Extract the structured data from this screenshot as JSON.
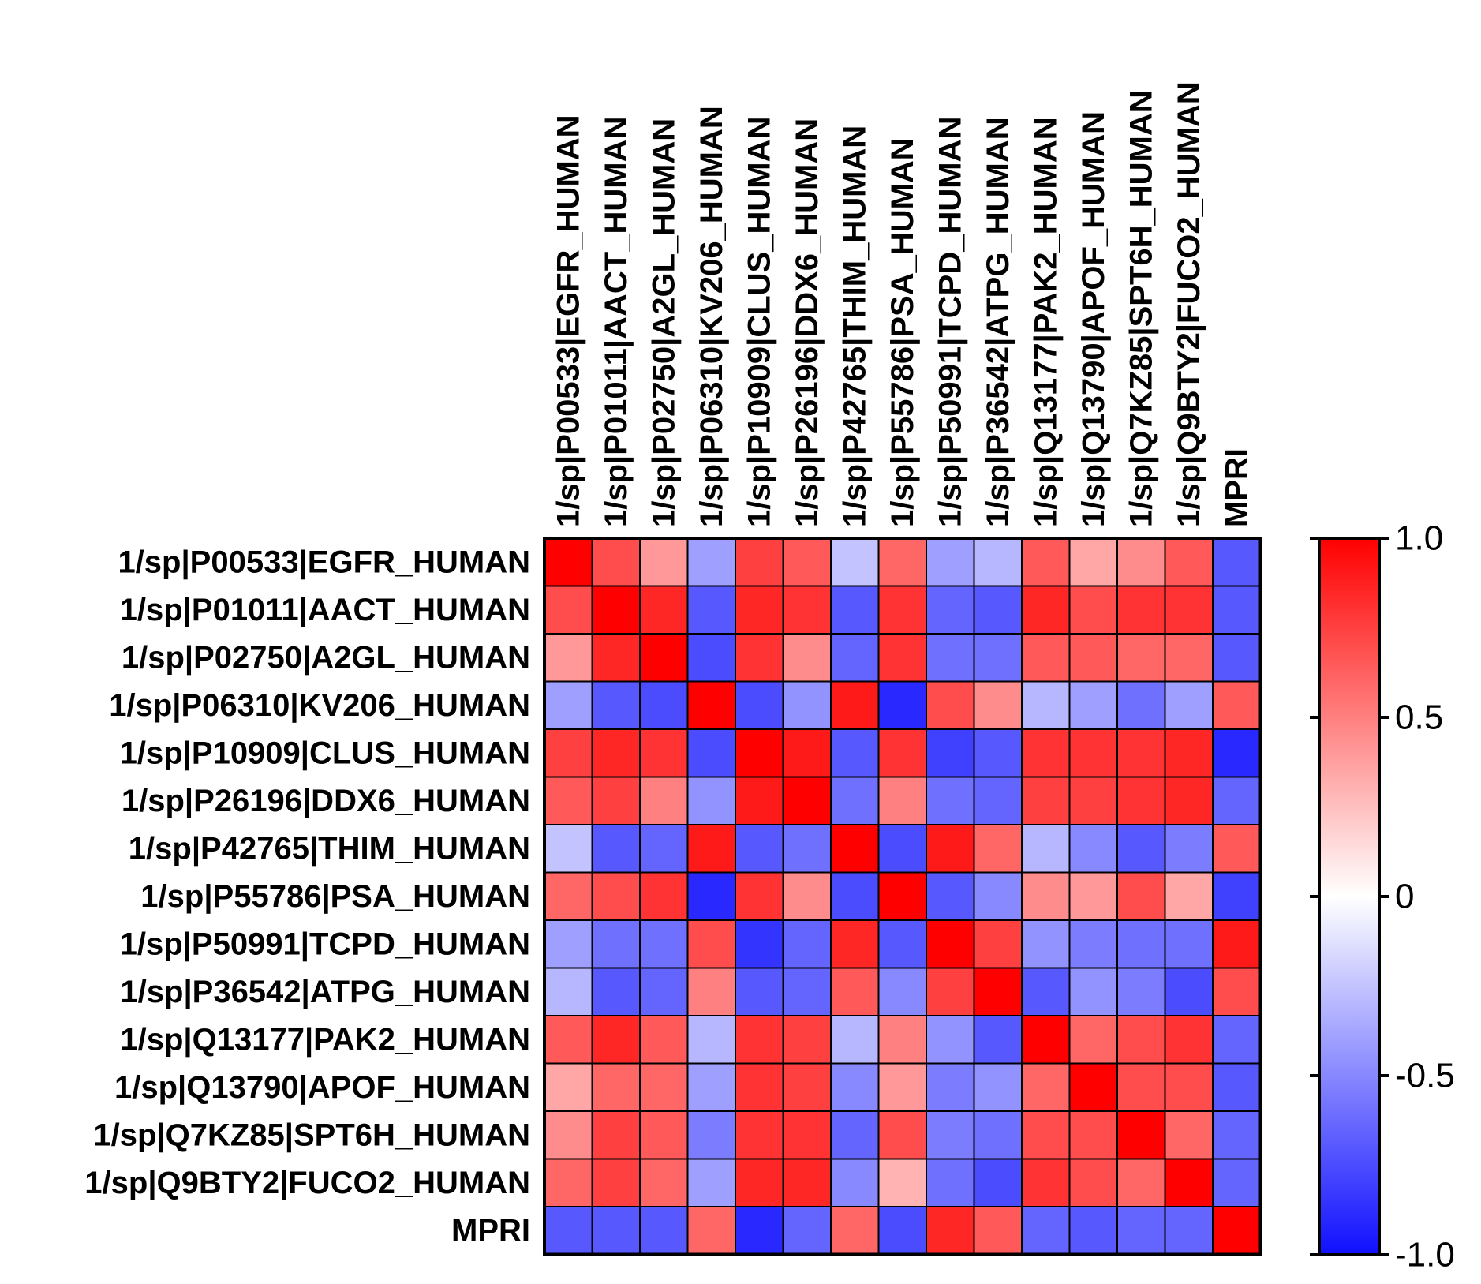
{
  "chart_data": {
    "type": "heatmap",
    "title": "",
    "row_labels": [
      "1/sp|P00533|EGFR_HUMAN",
      "1/sp|P01011|AACT_HUMAN",
      "1/sp|P02750|A2GL_HUMAN",
      "1/sp|P06310|KV206_HUMAN",
      "1/sp|P10909|CLUS_HUMAN",
      "1/sp|P26196|DDX6_HUMAN",
      "1/sp|P42765|THIM_HUMAN",
      "1/sp|P55786|PSA_HUMAN",
      "1/sp|P50991|TCPD_HUMAN",
      "1/sp|P36542|ATPG_HUMAN",
      "1/sp|Q13177|PAK2_HUMAN",
      "1/sp|Q13790|APOF_HUMAN",
      "1/sp|Q7KZ85|SPT6H_HUMAN",
      "1/sp|Q9BTY2|FUCO2_HUMAN",
      "MPRI"
    ],
    "col_labels": [
      "1/sp|P00533|EGFR_HUMAN",
      "1/sp|P01011|AACT_HUMAN",
      "1/sp|P02750|A2GL_HUMAN",
      "1/sp|P06310|KV206_HUMAN",
      "1/sp|P10909|CLUS_HUMAN",
      "1/sp|P26196|DDX6_HUMAN",
      "1/sp|P42765|THIM_HUMAN",
      "1/sp|P55786|PSA_HUMAN",
      "1/sp|P50991|TCPD_HUMAN",
      "1/sp|P36542|ATPG_HUMAN",
      "1/sp|Q13177|PAK2_HUMAN",
      "1/sp|Q13790|APOF_HUMAN",
      "1/sp|Q7KZ85|SPT6H_HUMAN",
      "1/sp|Q9BTY2|FUCO2_HUMAN",
      "MPRI"
    ],
    "values": [
      [
        1.0,
        0.7,
        0.4,
        -0.4,
        0.75,
        0.65,
        -0.25,
        0.6,
        -0.4,
        -0.3,
        0.65,
        0.35,
        0.45,
        0.65,
        -0.7
      ],
      [
        0.7,
        1.0,
        0.85,
        -0.7,
        0.85,
        0.8,
        -0.7,
        0.8,
        -0.65,
        -0.7,
        0.85,
        0.7,
        0.8,
        0.8,
        -0.7
      ],
      [
        0.4,
        0.85,
        1.0,
        -0.75,
        0.8,
        0.45,
        -0.65,
        0.8,
        -0.6,
        -0.6,
        0.65,
        0.65,
        0.6,
        0.6,
        -0.7
      ],
      [
        -0.4,
        -0.7,
        -0.75,
        1.0,
        -0.75,
        -0.45,
        0.9,
        -0.9,
        0.7,
        0.45,
        -0.3,
        -0.4,
        -0.6,
        -0.4,
        0.65
      ],
      [
        0.75,
        0.85,
        0.8,
        -0.75,
        1.0,
        0.9,
        -0.7,
        0.8,
        -0.8,
        -0.7,
        0.8,
        0.8,
        0.8,
        0.85,
        -0.9
      ],
      [
        0.65,
        0.75,
        0.5,
        -0.45,
        0.9,
        1.0,
        -0.6,
        0.5,
        -0.6,
        -0.65,
        0.75,
        0.75,
        0.8,
        0.85,
        -0.65
      ],
      [
        -0.25,
        -0.7,
        -0.65,
        0.9,
        -0.7,
        -0.6,
        1.0,
        -0.75,
        0.9,
        0.6,
        -0.3,
        -0.5,
        -0.7,
        -0.55,
        0.65
      ],
      [
        0.6,
        0.7,
        0.8,
        -0.9,
        0.8,
        0.45,
        -0.75,
        1.0,
        -0.7,
        -0.5,
        0.45,
        0.4,
        0.7,
        0.35,
        -0.8
      ],
      [
        -0.4,
        -0.6,
        -0.6,
        0.7,
        -0.85,
        -0.65,
        0.85,
        -0.7,
        1.0,
        0.75,
        -0.45,
        -0.55,
        -0.6,
        -0.6,
        0.9
      ],
      [
        -0.3,
        -0.7,
        -0.65,
        0.5,
        -0.7,
        -0.65,
        0.65,
        -0.5,
        0.75,
        1.0,
        -0.7,
        -0.45,
        -0.55,
        -0.75,
        0.7
      ],
      [
        0.65,
        0.85,
        0.65,
        -0.3,
        0.8,
        0.75,
        -0.3,
        0.5,
        -0.45,
        -0.7,
        1.0,
        0.6,
        0.7,
        0.8,
        -0.65
      ],
      [
        0.35,
        0.6,
        0.6,
        -0.4,
        0.8,
        0.75,
        -0.5,
        0.4,
        -0.55,
        -0.45,
        0.6,
        1.0,
        0.7,
        0.7,
        -0.7
      ],
      [
        0.45,
        0.75,
        0.65,
        -0.55,
        0.8,
        0.8,
        -0.65,
        0.7,
        -0.55,
        -0.6,
        0.7,
        0.7,
        1.0,
        0.6,
        -0.65
      ],
      [
        0.6,
        0.75,
        0.6,
        -0.4,
        0.85,
        0.85,
        -0.5,
        0.3,
        -0.6,
        -0.75,
        0.8,
        0.7,
        0.6,
        1.0,
        -0.65
      ],
      [
        -0.7,
        -0.7,
        -0.7,
        0.6,
        -0.9,
        -0.65,
        0.6,
        -0.75,
        0.85,
        0.65,
        -0.65,
        -0.7,
        -0.65,
        -0.65,
        1.0
      ]
    ],
    "colorbar": {
      "min": -1.0,
      "max": 1.0,
      "ticks": [
        1.0,
        0.5,
        0,
        -0.5,
        -1.0
      ],
      "tick_labels": [
        "1.0",
        "0.5",
        "0",
        "-0.5",
        "-1.0"
      ]
    },
    "colors": {
      "low": "#1010ff",
      "mid": "#ffffff",
      "high": "#ff0000"
    }
  }
}
